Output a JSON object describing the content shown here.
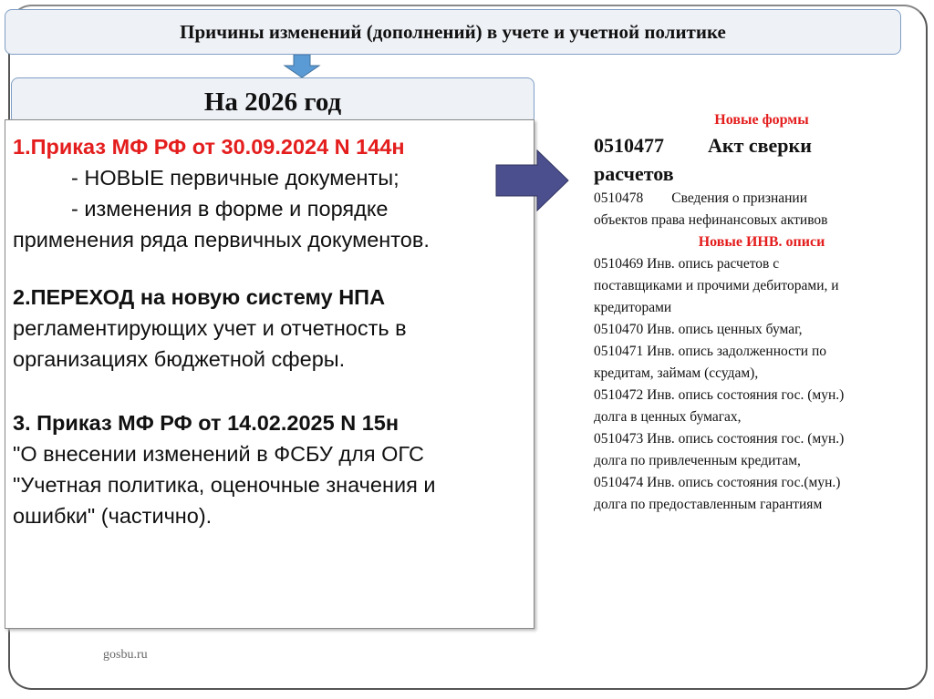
{
  "title": "Причины изменений (дополнений) в учете и учетной политике",
  "year_heading": "На 2026 год",
  "left": {
    "item1_title": "1.Приказ МФ РФ от 30.09.2024 N 144н",
    "item1_line1": "- НОВЫЕ первичные документы;",
    "item1_line2": "- изменения в форме и порядке",
    "item1_line3": "применения ряда первичных документов.",
    "item2_title": "2.ПЕРЕХОД на новую систему НПА",
    "item2_line1": "регламентирующих учет и отчетность в",
    "item2_line2": "организациях бюджетной сферы.",
    "item3_title": "3. Приказ МФ РФ от 14.02.2025 N 15н",
    "item3_line1": "\"О внесении изменений в ФСБУ для ОГС",
    "item3_line2": "\"Учетная политика, оценочные значения и",
    "item3_line3": "ошибки\" (частично)."
  },
  "right": {
    "forms_heading": "Новые формы",
    "form1_code": "0510477",
    "form1_name_a": "Акт сверки",
    "form1_name_b": "расчетов",
    "form2_line1": "0510478        Сведения о признании",
    "form2_line2": "объектов права нефинансовых активов",
    "inv_heading": "Новые ИНВ. описи",
    "inv_lines": [
      "0510469  Инв. опись расчетов с",
      "поставщиками и прочими дебиторами, и",
      "кредиторами",
      "0510470 Инв.  опись ценных бумаг,",
      "0510471 Инв. опись задолженности по",
      "кредитам, займам (ссудам),",
      "0510472 Инв. опись состояния гос. (мун.)",
      "долга в ценных бумагах,",
      "0510473 Инв. опись состояния гос. (мун.)",
      "долга по привлеченным кредитам,",
      "0510474  Инв. опись состояния гос.(мун.)",
      "долга по предоставленным гарантиям"
    ]
  },
  "footer": "gosbu.ru",
  "colors": {
    "accent_red": "#e41d1d",
    "down_arrow": "#5b9bd5",
    "right_arrow": "#4b4f8e",
    "box_border": "#7f9fc5"
  }
}
